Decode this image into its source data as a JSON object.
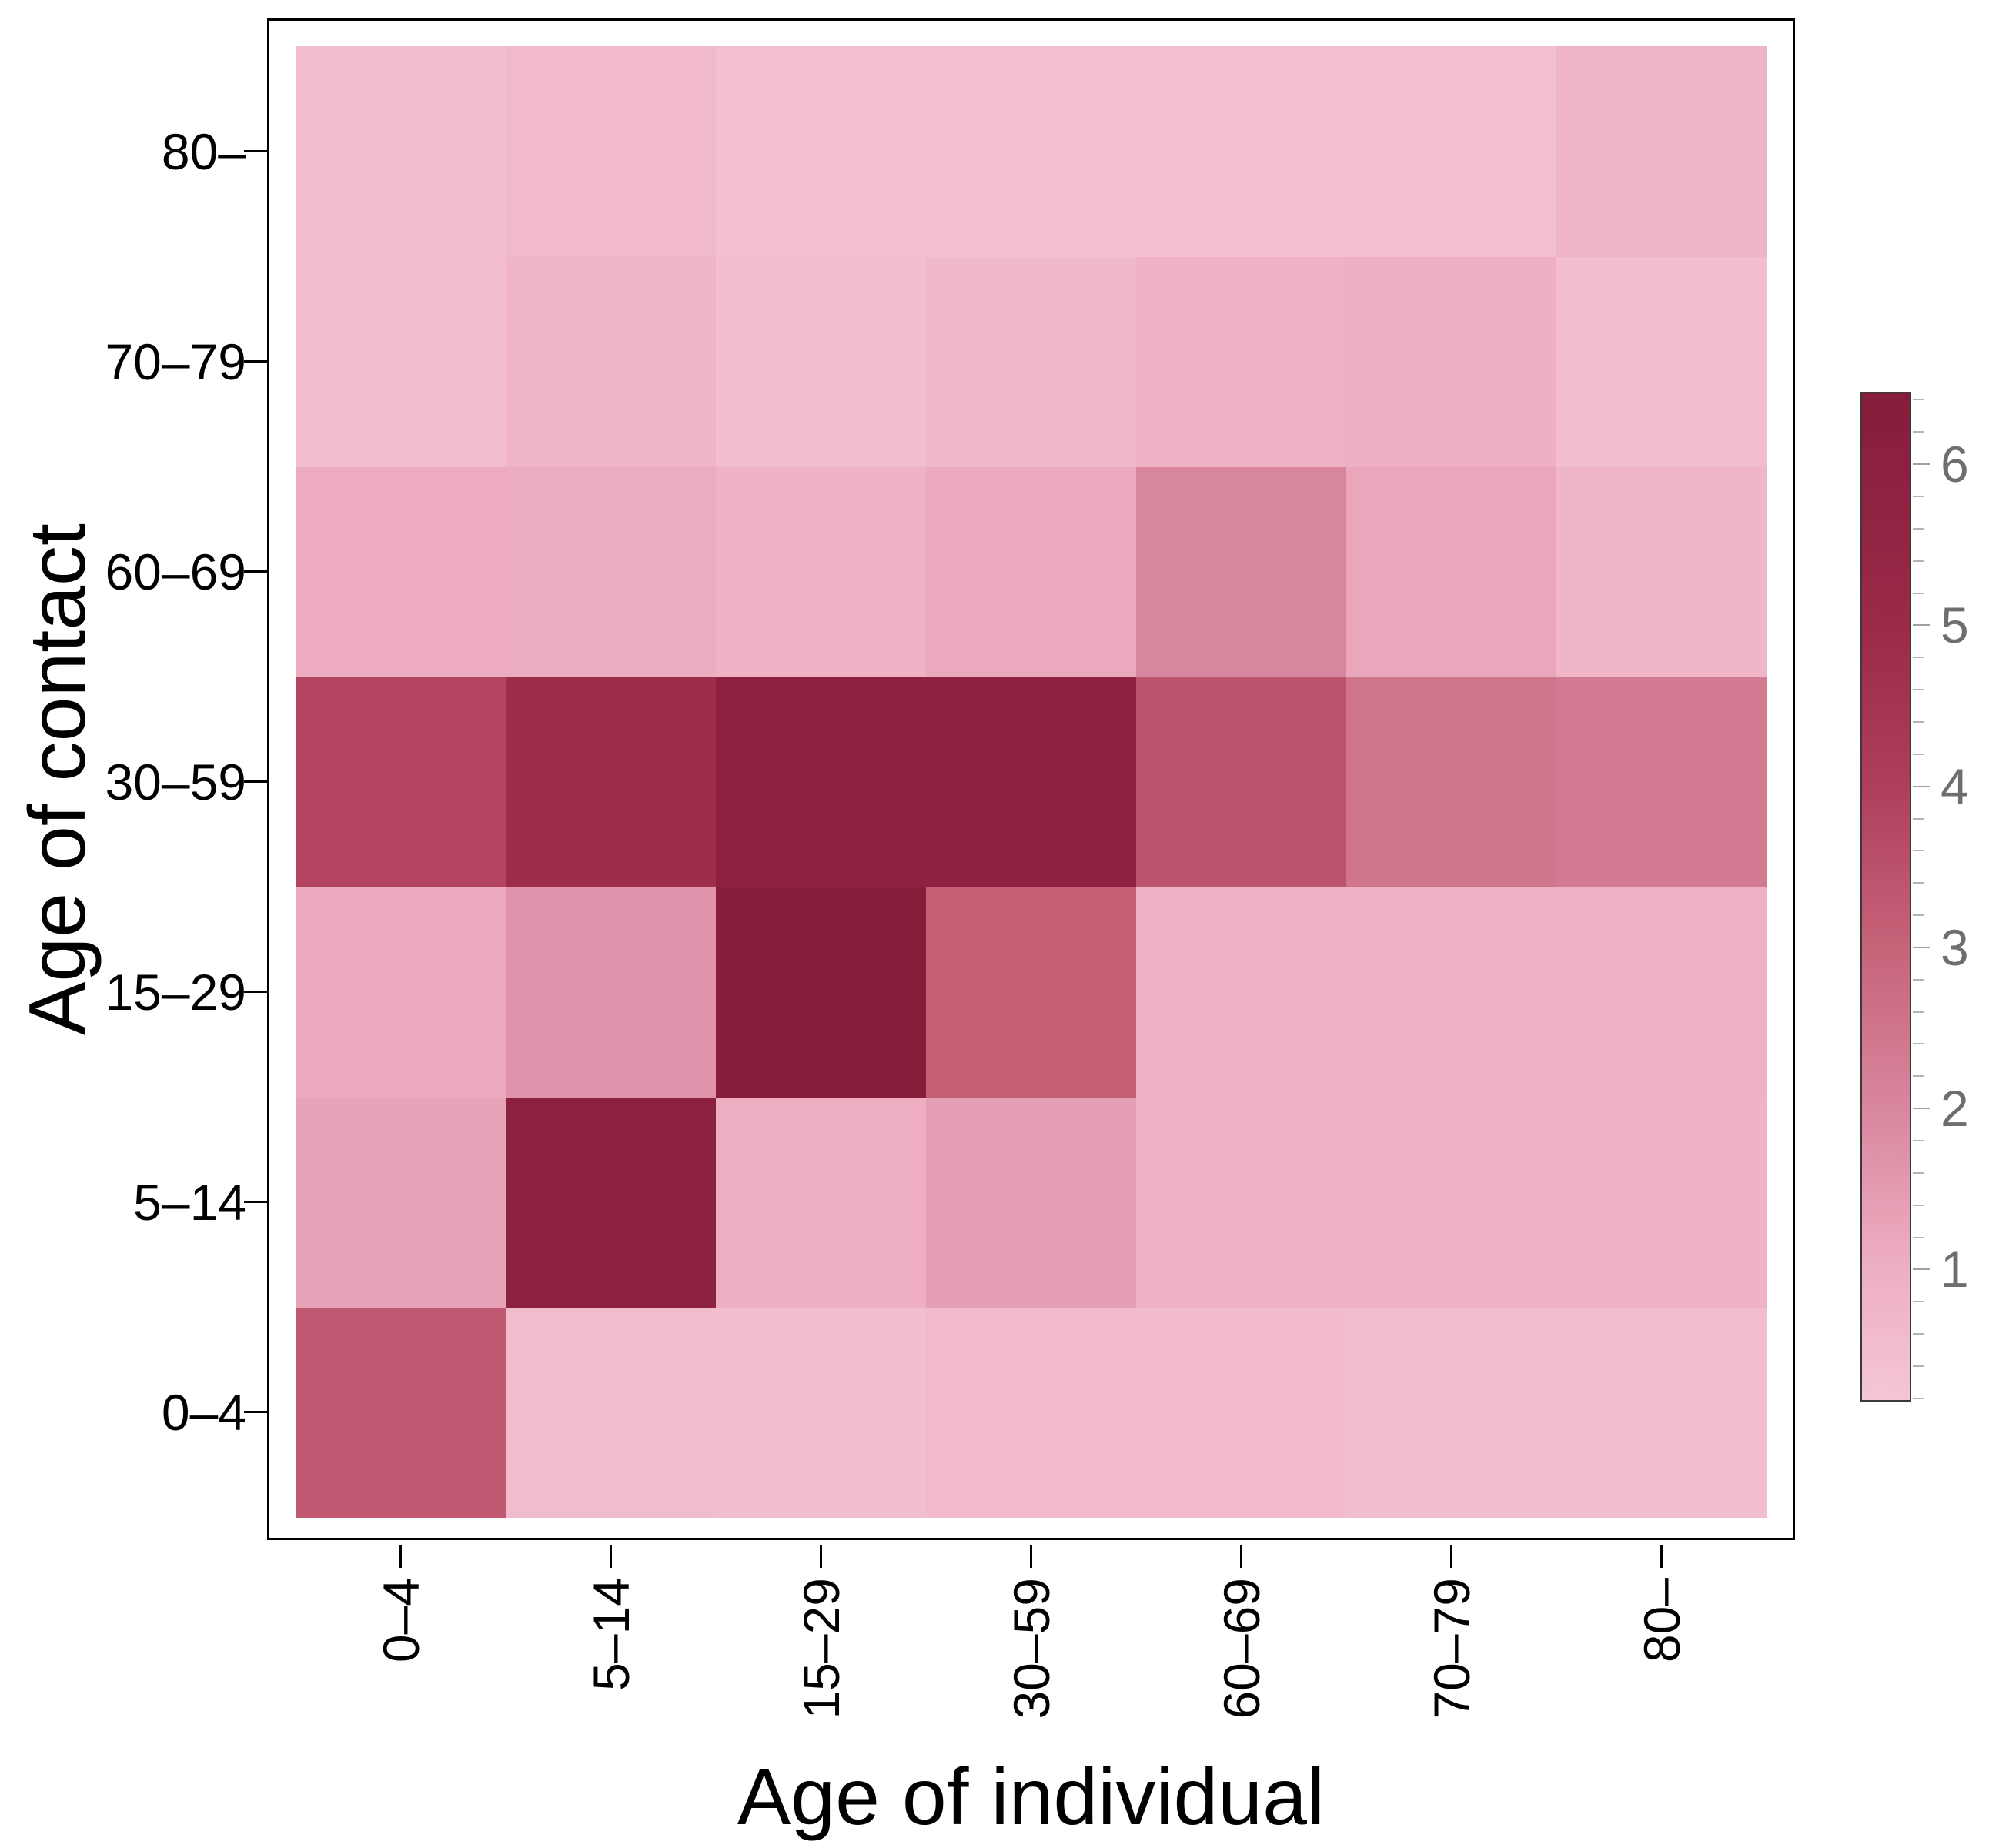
{
  "figure": {
    "background": "#ffffff"
  },
  "chart_data": {
    "type": "heatmap",
    "title": "",
    "xlabel": "Age of individual",
    "ylabel": "Age of contact",
    "x_categories": [
      "0–4",
      "5–14",
      "15–29",
      "30–59",
      "60–69",
      "70–79",
      "80–"
    ],
    "y_categories": [
      "0–4",
      "5–14",
      "15–29",
      "30–59",
      "60–69",
      "70–79",
      "80–"
    ],
    "values_note": "rows ordered bottom-to-top (y_categories order); columns left-to-right (x_categories order); mean contacts estimated from color scale",
    "values": [
      [
        3.3,
        0.55,
        0.45,
        0.6,
        0.58,
        0.45,
        0.45
      ],
      [
        1.3,
        5.9,
        1.0,
        1.4,
        0.85,
        0.85,
        0.85
      ],
      [
        1.15,
        1.65,
        6.45,
        3.1,
        0.9,
        0.9,
        0.88
      ],
      [
        3.85,
        4.85,
        6.05,
        5.9,
        3.45,
        2.5,
        2.35
      ],
      [
        1.1,
        1.05,
        0.85,
        1.15,
        2.0,
        1.2,
        0.75
      ],
      [
        0.47,
        0.8,
        0.5,
        0.66,
        0.88,
        1.0,
        0.48
      ],
      [
        0.45,
        0.62,
        0.38,
        0.38,
        0.4,
        0.42,
        0.8
      ]
    ],
    "grid": false,
    "legend_position": "right",
    "colorbar": {
      "min": 0.18,
      "max": 6.45,
      "major_ticks": [
        1,
        2,
        3,
        4,
        5,
        6
      ],
      "minor_tick_step": 0.2,
      "gradient_stops": [
        {
          "v": 0.18,
          "c": "#f4c6d4"
        },
        {
          "v": 1.0,
          "c": "#eeafc2"
        },
        {
          "v": 2.0,
          "c": "#d8869e"
        },
        {
          "v": 3.0,
          "c": "#c66379"
        },
        {
          "v": 4.0,
          "c": "#ae3f5c"
        },
        {
          "v": 5.0,
          "c": "#9a2a48"
        },
        {
          "v": 6.0,
          "c": "#8c2040"
        },
        {
          "v": 6.45,
          "c": "#851d3b"
        }
      ]
    },
    "colors": {
      "axis_text": "#000000",
      "colorbar_label_text": "#6e6e6e",
      "panel_border": "#000000"
    }
  }
}
